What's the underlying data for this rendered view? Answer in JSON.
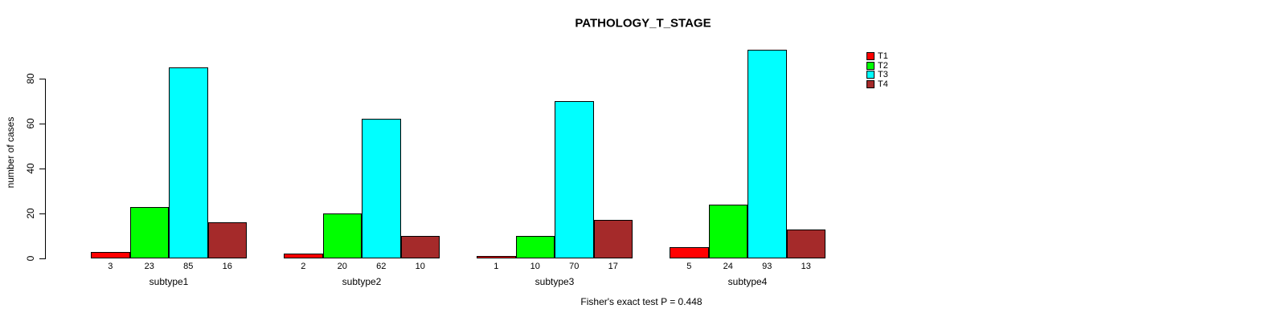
{
  "chart_data": {
    "type": "bar",
    "title": "PATHOLOGY_T_STAGE",
    "ylabel": "number of cases",
    "xlabel": "",
    "categories": [
      "subtype1",
      "subtype2",
      "subtype3",
      "subtype4"
    ],
    "series": [
      {
        "name": "T1",
        "color": "#FF0000",
        "values": [
          3,
          2,
          1,
          5
        ]
      },
      {
        "name": "T2",
        "color": "#00FF00",
        "values": [
          23,
          20,
          10,
          24
        ]
      },
      {
        "name": "T3",
        "color": "#00FFFF",
        "values": [
          85,
          62,
          70,
          93
        ]
      },
      {
        "name": "T4",
        "color": "#A52A2A",
        "values": [
          16,
          10,
          17,
          13
        ]
      }
    ],
    "bar_value_labels_shown": true,
    "yticks": [
      0,
      20,
      40,
      60,
      80
    ],
    "ylim": [
      0,
      93
    ],
    "grid": false,
    "legend_position": "topright",
    "annotation": "Fisher's exact test P = 0.448"
  }
}
